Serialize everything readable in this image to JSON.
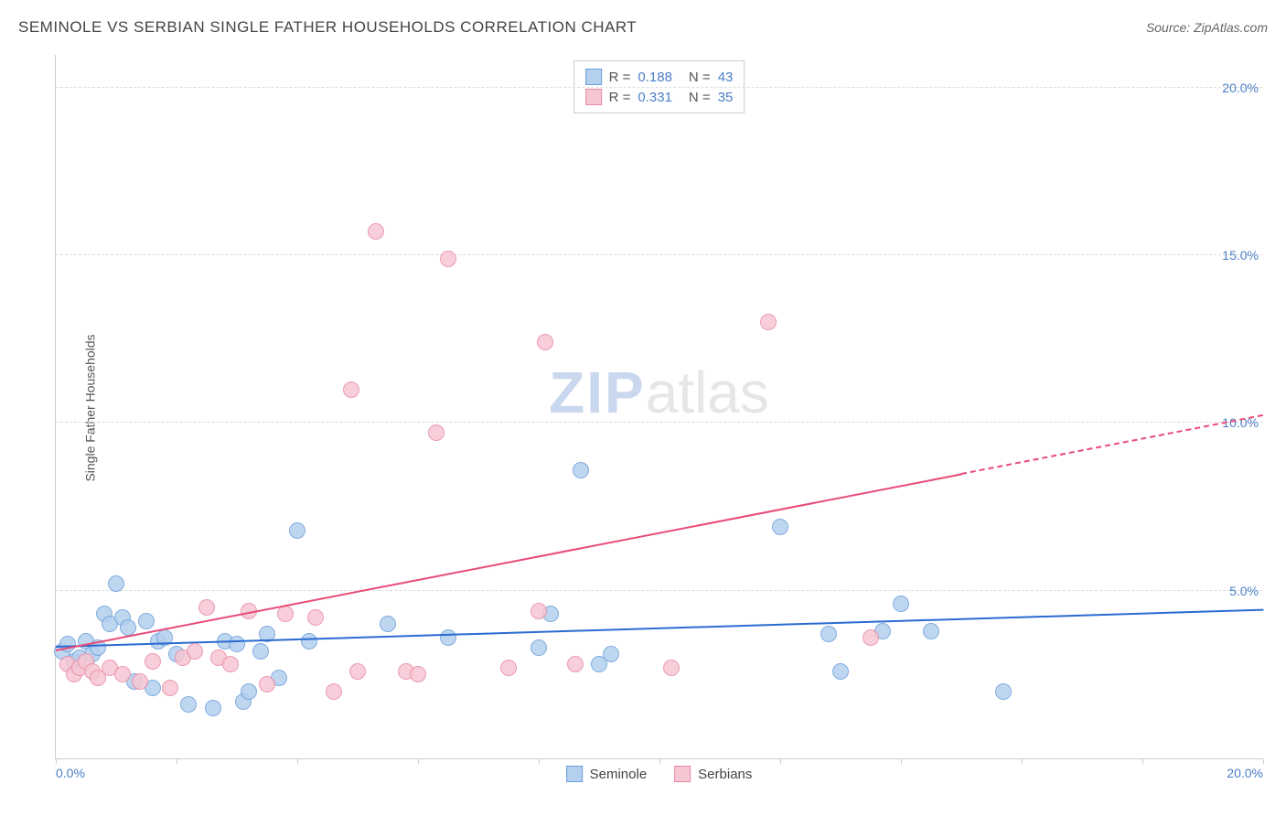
{
  "header": {
    "title": "SEMINOLE VS SERBIAN SINGLE FATHER HOUSEHOLDS CORRELATION CHART",
    "source": "Source: ZipAtlas.com"
  },
  "chart": {
    "type": "scatter",
    "ylabel": "Single Father Households",
    "xlim": [
      0,
      20
    ],
    "ylim": [
      0,
      21
    ],
    "ytick_step": 5,
    "yticklabels": [
      "5.0%",
      "10.0%",
      "15.0%",
      "20.0%"
    ],
    "xticklabels_visible": [
      "0.0%",
      "20.0%"
    ],
    "xtick_positions": [
      0,
      2,
      4,
      6,
      8,
      10,
      12,
      14,
      16,
      18,
      20
    ],
    "background_color": "#ffffff",
    "grid_color": "#dddddd",
    "axis_color": "#cccccc",
    "axis_label_color": "#4a7ec7",
    "point_radius": 9,
    "point_stroke_width": 1.5,
    "series": [
      {
        "name": "Seminole",
        "fill_color": "#b5cfee",
        "stroke_color": "#6a9fd9",
        "trend_color": "#2a6bd1",
        "r_value": "0.188",
        "n_value": "43",
        "trend": {
          "x1": 0,
          "y1": 3.3,
          "x2": 20,
          "y2": 4.4,
          "dash_from_x": 20
        },
        "points": [
          [
            0.1,
            3.2
          ],
          [
            0.2,
            3.4
          ],
          [
            0.3,
            2.9
          ],
          [
            0.4,
            3.0
          ],
          [
            0.5,
            3.5
          ],
          [
            0.6,
            3.1
          ],
          [
            0.7,
            3.3
          ],
          [
            0.8,
            4.3
          ],
          [
            0.9,
            4.0
          ],
          [
            1.0,
            5.2
          ],
          [
            1.1,
            4.2
          ],
          [
            1.2,
            3.9
          ],
          [
            1.3,
            2.3
          ],
          [
            1.5,
            4.1
          ],
          [
            1.6,
            2.1
          ],
          [
            1.7,
            3.5
          ],
          [
            1.8,
            3.6
          ],
          [
            2.0,
            3.1
          ],
          [
            2.2,
            1.6
          ],
          [
            2.6,
            1.5
          ],
          [
            2.8,
            3.5
          ],
          [
            3.0,
            3.4
          ],
          [
            3.1,
            1.7
          ],
          [
            3.2,
            2.0
          ],
          [
            3.4,
            3.2
          ],
          [
            3.5,
            3.7
          ],
          [
            3.7,
            2.4
          ],
          [
            4.0,
            6.8
          ],
          [
            4.2,
            3.5
          ],
          [
            5.5,
            4.0
          ],
          [
            6.5,
            3.6
          ],
          [
            8.0,
            3.3
          ],
          [
            8.2,
            4.3
          ],
          [
            8.7,
            8.6
          ],
          [
            9.0,
            2.8
          ],
          [
            9.2,
            3.1
          ],
          [
            12.0,
            6.9
          ],
          [
            12.8,
            3.7
          ],
          [
            13.0,
            2.6
          ],
          [
            13.7,
            3.8
          ],
          [
            14.0,
            4.6
          ],
          [
            14.5,
            3.8
          ],
          [
            15.7,
            2.0
          ]
        ]
      },
      {
        "name": "Serbians",
        "fill_color": "#f6c6d3",
        "stroke_color": "#e88aa6",
        "trend_color": "#e94b77",
        "r_value": "0.331",
        "n_value": "35",
        "trend": {
          "x1": 0,
          "y1": 3.2,
          "x2": 20,
          "y2": 10.2,
          "dash_from_x": 15
        },
        "points": [
          [
            0.2,
            2.8
          ],
          [
            0.3,
            2.5
          ],
          [
            0.4,
            2.7
          ],
          [
            0.5,
            2.9
          ],
          [
            0.6,
            2.6
          ],
          [
            0.7,
            2.4
          ],
          [
            0.9,
            2.7
          ],
          [
            1.1,
            2.5
          ],
          [
            1.4,
            2.3
          ],
          [
            1.6,
            2.9
          ],
          [
            1.9,
            2.1
          ],
          [
            2.1,
            3.0
          ],
          [
            2.3,
            3.2
          ],
          [
            2.5,
            4.5
          ],
          [
            2.7,
            3.0
          ],
          [
            2.9,
            2.8
          ],
          [
            3.2,
            4.4
          ],
          [
            3.5,
            2.2
          ],
          [
            3.8,
            4.3
          ],
          [
            4.3,
            4.2
          ],
          [
            4.6,
            2.0
          ],
          [
            4.9,
            11.0
          ],
          [
            5.0,
            2.6
          ],
          [
            5.3,
            15.7
          ],
          [
            5.8,
            2.6
          ],
          [
            6.0,
            2.5
          ],
          [
            6.3,
            9.7
          ],
          [
            6.5,
            14.9
          ],
          [
            7.5,
            2.7
          ],
          [
            8.0,
            4.4
          ],
          [
            8.1,
            12.4
          ],
          [
            8.6,
            2.8
          ],
          [
            10.2,
            2.7
          ],
          [
            11.8,
            13.0
          ],
          [
            13.5,
            3.6
          ]
        ]
      }
    ],
    "legend_bottom": [
      "Seminole",
      "Serbians"
    ],
    "watermark": {
      "zip": "ZIP",
      "atlas": "atlas"
    }
  }
}
